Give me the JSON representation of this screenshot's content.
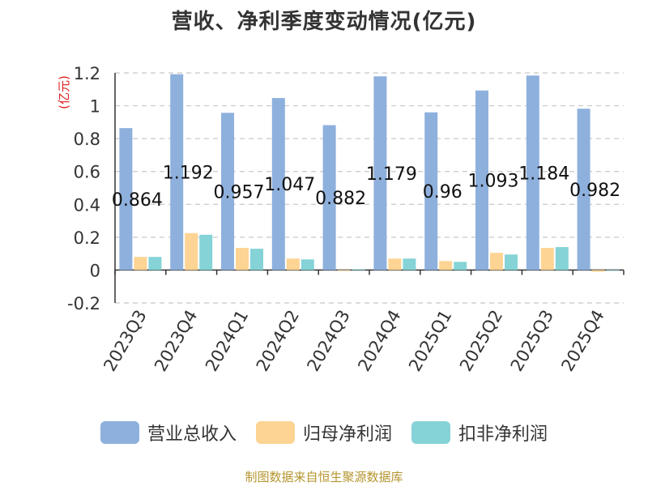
{
  "chart_data": {
    "type": "bar",
    "title": "营收、净利季度变动情况(亿元)",
    "ylabel": "(亿元)",
    "xlabel": "",
    "ylim": [
      -0.2,
      1.2
    ],
    "yticks": [
      1.2,
      1,
      0.8,
      0.6,
      0.4,
      0.2,
      0,
      -0.2
    ],
    "ytick_labels": [
      "1.2",
      "1",
      "0.8",
      "0.6",
      "0.4",
      "0.2",
      "0",
      "-0.2"
    ],
    "grid": true,
    "legend_position": "bottom",
    "categories": [
      "2023Q3",
      "2023Q4",
      "2024Q1",
      "2024Q2",
      "2024Q3",
      "2024Q4",
      "2025Q1",
      "2025Q2",
      "2025Q3",
      "2025Q4"
    ],
    "series": [
      {
        "name": "营业总收入",
        "color": "#8eb0dd",
        "values": [
          0.864,
          1.192,
          0.957,
          1.047,
          0.882,
          1.179,
          0.96,
          1.093,
          1.184,
          0.982
        ],
        "labels": [
          "0.864",
          "1.192",
          "0.957",
          "1.047",
          "0.882",
          "1.179",
          "0.96",
          "1.093",
          "1.184",
          "0.982"
        ]
      },
      {
        "name": "归母净利润",
        "color": "#fdd493",
        "values": [
          0.08,
          0.225,
          0.135,
          0.07,
          -0.005,
          0.07,
          0.055,
          0.105,
          0.135,
          -0.01
        ]
      },
      {
        "name": "扣非净利润",
        "color": "#85d3d6",
        "values": [
          0.08,
          0.215,
          0.13,
          0.065,
          0.005,
          0.07,
          0.05,
          0.095,
          0.14,
          0.0
        ]
      }
    ]
  },
  "source_note": "制图数据来自恒生聚源数据库"
}
